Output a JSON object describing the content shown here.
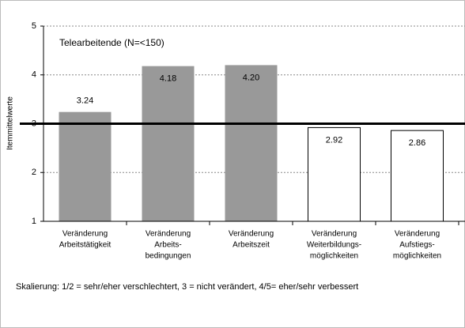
{
  "chart_data": {
    "type": "bar",
    "title": "Telearbeitende (N=<150)",
    "y_label": "Itemmittelwerte",
    "note": "Skalierung: 1/2 = sehr/eher verschlechtert, 3 = nicht verändert, 4/5= eher/sehr verbessert",
    "categories": [
      [
        "Veränderung",
        "Arbeitstätigkeit"
      ],
      [
        "Veränderung",
        "Arbeits-",
        "bedingungen"
      ],
      [
        "Veränderung",
        "Arbeitszeit"
      ],
      [
        "Veränderung",
        "Weiterbildungs-",
        "möglichkeiten"
      ],
      [
        "Veränderung",
        "Aufstiegs-",
        "möglichkeiten"
      ]
    ],
    "values": [
      3.24,
      4.18,
      4.2,
      2.92,
      2.86
    ],
    "value_labels": [
      "3.24",
      "4.18",
      "4.20",
      "2.92",
      "2.86"
    ],
    "colors": [
      "#999999",
      "#999999",
      "#999999",
      "#ffffff",
      "#ffffff"
    ],
    "reference_line": 3,
    "ylim": [
      1,
      5
    ],
    "yticks": [
      1,
      2,
      3,
      4,
      5
    ],
    "grid": true
  }
}
